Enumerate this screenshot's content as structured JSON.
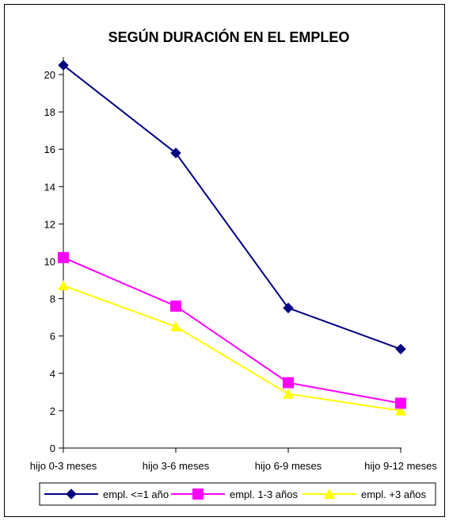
{
  "chart_data": {
    "type": "line",
    "title": "SEGÚN DURACIÓN EN EL EMPLEO",
    "xlabel": "",
    "ylabel": "",
    "categories": [
      "hijo 0-3 meses",
      "hijo 3-6 meses",
      "hijo 6-9 meses",
      "hijo 9-12 meses"
    ],
    "ylim": [
      0,
      20
    ],
    "yticks": [
      0,
      2,
      4,
      6,
      8,
      10,
      12,
      14,
      16,
      18,
      20
    ],
    "grid": false,
    "legend_position": "bottom",
    "series": [
      {
        "name": "empl. <=1 año",
        "values": [
          20.5,
          15.8,
          7.5,
          5.3
        ],
        "color": "#000080",
        "marker": "diamond"
      },
      {
        "name": "empl. 1-3 años",
        "values": [
          10.2,
          7.6,
          3.5,
          2.4
        ],
        "color": "#FF00FF",
        "marker": "square"
      },
      {
        "name": "empl. +3 años",
        "values": [
          8.7,
          6.5,
          2.9,
          2.0
        ],
        "color": "#FFFF00",
        "marker": "triangle"
      }
    ]
  }
}
